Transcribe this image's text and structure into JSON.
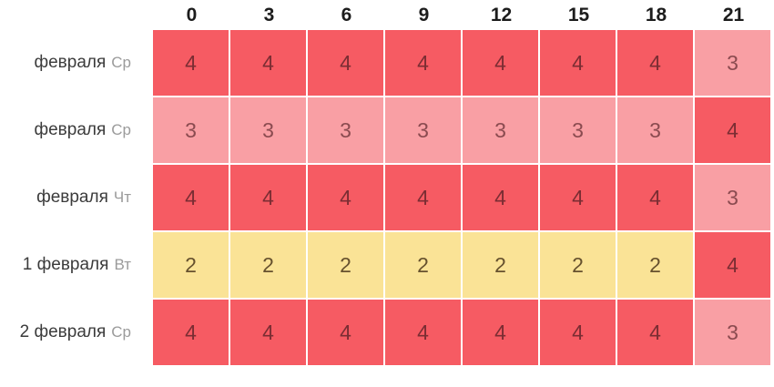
{
  "chart_data": {
    "type": "heatmap",
    "title": "",
    "columns": [
      "0",
      "3",
      "6",
      "9",
      "12",
      "15",
      "18",
      "21"
    ],
    "rows": [
      {
        "date": "февраля",
        "day": "Ср",
        "values": [
          4,
          4,
          4,
          4,
          4,
          4,
          4,
          3
        ]
      },
      {
        "date": "февраля",
        "day": "Ср",
        "values": [
          3,
          3,
          3,
          3,
          3,
          3,
          3,
          4
        ]
      },
      {
        "date": "февраля",
        "day": "Чт",
        "values": [
          4,
          4,
          4,
          4,
          4,
          4,
          4,
          3
        ]
      },
      {
        "date": "1 февраля",
        "day": "Вт",
        "values": [
          2,
          2,
          2,
          2,
          2,
          2,
          2,
          4
        ]
      },
      {
        "date": "2 февраля",
        "day": "Ср",
        "values": [
          4,
          4,
          4,
          4,
          4,
          4,
          4,
          3
        ]
      }
    ],
    "value_colors": {
      "2": {
        "bg": "#fae396",
        "text": "#66512e"
      },
      "3": {
        "bg": "#f99fa4",
        "text": "#8b4b50"
      },
      "4": {
        "bg": "#f65b63",
        "text": "#7b2d33"
      }
    },
    "layout": {
      "legend": "none",
      "grid_gap_color": "#ffffff",
      "header_text_color": "#1c1c1c",
      "label_text_color": "#3b3b3b",
      "day_text_color": "#9b9b9b"
    }
  }
}
